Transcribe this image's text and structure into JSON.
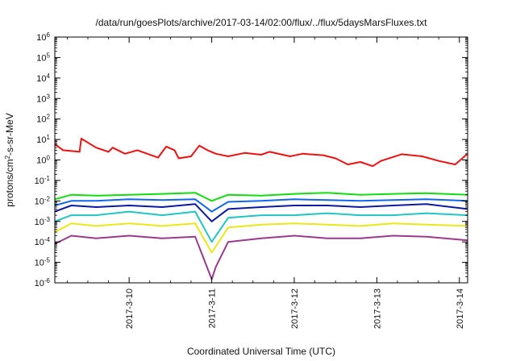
{
  "chart_data": {
    "type": "line",
    "title": "/data/run/goesPlots/archive/2017-03-14/02:00/flux/../flux/5daysMarsFluxes.txt",
    "xlabel": "Coordinated Universal Time (UTC)",
    "ylabel": "protons/cm²-s-sr-MeV",
    "ylabel_parts": {
      "pre": "protons/cm",
      "sup": "2",
      "post": "-s-sr-MeV"
    },
    "yscale": "log",
    "ylim_exp": [
      -6,
      6
    ],
    "y_tick_exponents": [
      -6,
      -5,
      -4,
      -3,
      -2,
      -1,
      0,
      1,
      2,
      3,
      4,
      5,
      6
    ],
    "y_tick_base": "10",
    "xlim_days": [
      9.1,
      14.1
    ],
    "x_ticks": [
      {
        "day": 10,
        "label": "2017-3-10"
      },
      {
        "day": 11,
        "label": "2017-3-11"
      },
      {
        "day": 12,
        "label": "2017-3-12"
      },
      {
        "day": 13,
        "label": "2017-3-13"
      },
      {
        "day": 14,
        "label": "2017-3-14"
      }
    ],
    "grid": false,
    "legend": "none",
    "series": [
      {
        "color": "#ee1111",
        "points": [
          [
            9.1,
            6
          ],
          [
            9.2,
            3
          ],
          [
            9.4,
            2.5
          ],
          [
            9.42,
            11
          ],
          [
            9.6,
            4
          ],
          [
            9.75,
            2.5
          ],
          [
            9.8,
            4
          ],
          [
            9.95,
            2
          ],
          [
            10.1,
            3
          ],
          [
            10.35,
            1.3
          ],
          [
            10.45,
            4.5
          ],
          [
            10.55,
            3
          ],
          [
            10.6,
            1.2
          ],
          [
            10.75,
            1.5
          ],
          [
            10.85,
            5
          ],
          [
            10.95,
            3
          ],
          [
            11.05,
            2
          ],
          [
            11.2,
            1.5
          ],
          [
            11.4,
            2.2
          ],
          [
            11.6,
            1.8
          ],
          [
            11.7,
            2.5
          ],
          [
            11.95,
            1.5
          ],
          [
            12.1,
            2
          ],
          [
            12.35,
            1.7
          ],
          [
            12.5,
            1.2
          ],
          [
            12.65,
            0.6
          ],
          [
            12.8,
            0.8
          ],
          [
            12.95,
            0.5
          ],
          [
            13.05,
            0.9
          ],
          [
            13.3,
            1.9
          ],
          [
            13.55,
            1.5
          ],
          [
            13.75,
            0.9
          ],
          [
            13.95,
            0.6
          ],
          [
            14.1,
            2
          ]
        ]
      },
      {
        "color": "#11dd11",
        "points": [
          [
            9.1,
            0.012
          ],
          [
            9.3,
            0.02
          ],
          [
            9.6,
            0.018
          ],
          [
            10.0,
            0.02
          ],
          [
            10.4,
            0.022
          ],
          [
            10.8,
            0.025
          ],
          [
            11.0,
            0.01
          ],
          [
            11.2,
            0.02
          ],
          [
            11.6,
            0.018
          ],
          [
            12.0,
            0.022
          ],
          [
            12.4,
            0.025
          ],
          [
            12.8,
            0.02
          ],
          [
            13.2,
            0.022
          ],
          [
            13.6,
            0.024
          ],
          [
            14.1,
            0.02
          ]
        ]
      },
      {
        "color": "#1166ee",
        "points": [
          [
            9.1,
            0.006
          ],
          [
            9.3,
            0.01
          ],
          [
            9.6,
            0.01
          ],
          [
            10.0,
            0.012
          ],
          [
            10.4,
            0.011
          ],
          [
            10.8,
            0.012
          ],
          [
            11.0,
            0.003
          ],
          [
            11.2,
            0.009
          ],
          [
            11.6,
            0.01
          ],
          [
            12.0,
            0.012
          ],
          [
            12.4,
            0.011
          ],
          [
            12.8,
            0.01
          ],
          [
            13.2,
            0.011
          ],
          [
            13.6,
            0.012
          ],
          [
            14.1,
            0.01
          ]
        ]
      },
      {
        "color": "#0a1aa0",
        "points": [
          [
            9.1,
            0.003
          ],
          [
            9.3,
            0.006
          ],
          [
            9.6,
            0.005
          ],
          [
            10.0,
            0.006
          ],
          [
            10.4,
            0.005
          ],
          [
            10.8,
            0.007
          ],
          [
            11.0,
            0.001
          ],
          [
            11.2,
            0.004
          ],
          [
            11.6,
            0.005
          ],
          [
            12.0,
            0.006
          ],
          [
            12.4,
            0.006
          ],
          [
            12.8,
            0.005
          ],
          [
            13.2,
            0.006
          ],
          [
            13.6,
            0.007
          ],
          [
            14.1,
            0.004
          ]
        ]
      },
      {
        "color": "#22c4c4",
        "points": [
          [
            9.1,
            0.001
          ],
          [
            9.3,
            0.002
          ],
          [
            9.6,
            0.002
          ],
          [
            10.0,
            0.003
          ],
          [
            10.4,
            0.002
          ],
          [
            10.8,
            0.003
          ],
          [
            11.0,
            0.0001
          ],
          [
            11.2,
            0.0015
          ],
          [
            11.6,
            0.002
          ],
          [
            12.0,
            0.002
          ],
          [
            12.4,
            0.0025
          ],
          [
            12.8,
            0.002
          ],
          [
            13.2,
            0.002
          ],
          [
            13.6,
            0.0025
          ],
          [
            14.1,
            0.002
          ]
        ]
      },
      {
        "color": "#e8e81a",
        "points": [
          [
            9.1,
            0.0003
          ],
          [
            9.3,
            0.0008
          ],
          [
            9.6,
            0.0006
          ],
          [
            10.0,
            0.0008
          ],
          [
            10.4,
            0.0006
          ],
          [
            10.8,
            0.0008
          ],
          [
            11.0,
            3e-05
          ],
          [
            11.2,
            0.0005
          ],
          [
            11.6,
            0.0007
          ],
          [
            12.0,
            0.0008
          ],
          [
            12.4,
            0.0007
          ],
          [
            12.8,
            0.0006
          ],
          [
            13.2,
            0.0008
          ],
          [
            13.6,
            0.0007
          ],
          [
            14.1,
            0.0006
          ]
        ]
      },
      {
        "color": "#9a3a8a",
        "points": [
          [
            9.1,
            8e-05
          ],
          [
            9.3,
            0.0002
          ],
          [
            9.6,
            0.00015
          ],
          [
            10.0,
            0.0002
          ],
          [
            10.4,
            0.00015
          ],
          [
            10.8,
            0.00018
          ],
          [
            11.0,
            1.5e-06
          ],
          [
            11.05,
            6e-06
          ],
          [
            11.2,
            0.0001
          ],
          [
            11.6,
            0.00015
          ],
          [
            12.0,
            0.0002
          ],
          [
            12.4,
            0.00015
          ],
          [
            12.8,
            0.00015
          ],
          [
            13.2,
            0.0002
          ],
          [
            13.6,
            0.00018
          ],
          [
            14.1,
            0.00012
          ]
        ]
      }
    ]
  }
}
